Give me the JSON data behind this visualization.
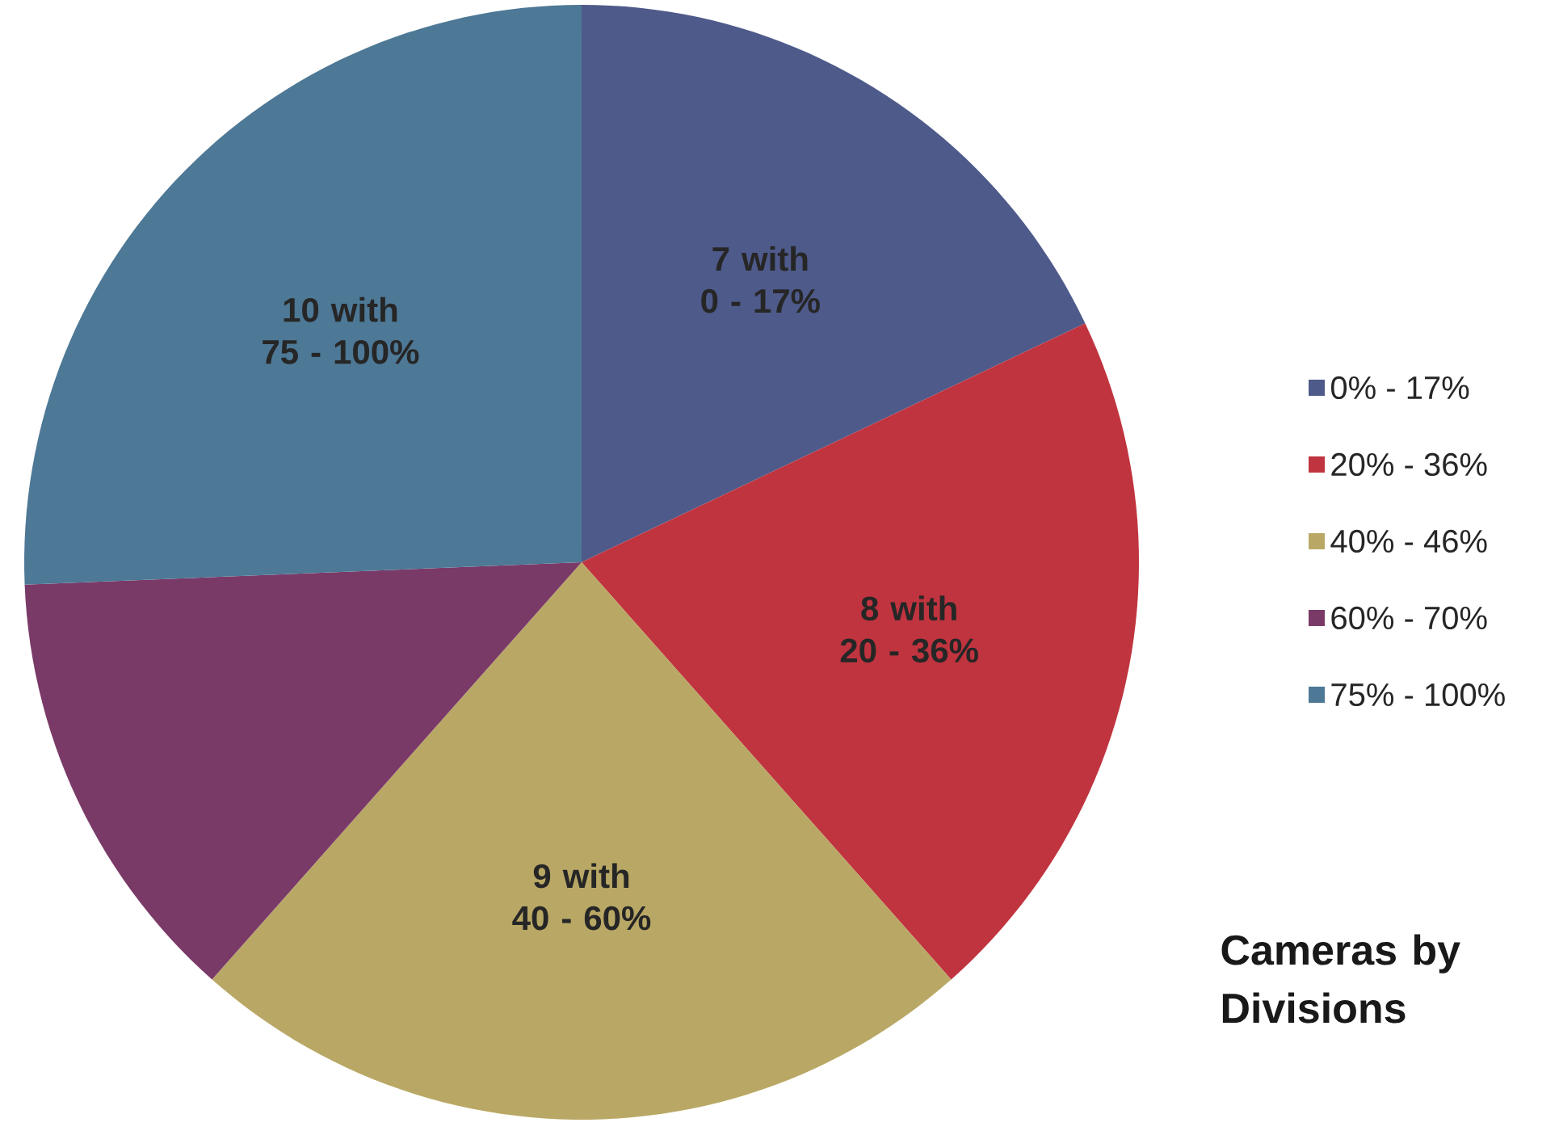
{
  "chart_data": {
    "type": "pie",
    "title": "Cameras by Divisions",
    "categories": [
      "0% - 17%",
      "20% - 36%",
      "40% - 46%",
      "60% - 70%",
      "75% - 100%"
    ],
    "values": [
      7,
      8,
      9,
      5,
      10
    ],
    "colors": [
      "#4e5a8a",
      "#c0343f",
      "#b9a865",
      "#7a3a68",
      "#4d7896"
    ],
    "value_labels": [
      "7 with 0 - 17%",
      "8 with 20 - 36%",
      "9 with 40 - 60%",
      null,
      "10 with 75 - 100%"
    ],
    "legend": "right"
  }
}
